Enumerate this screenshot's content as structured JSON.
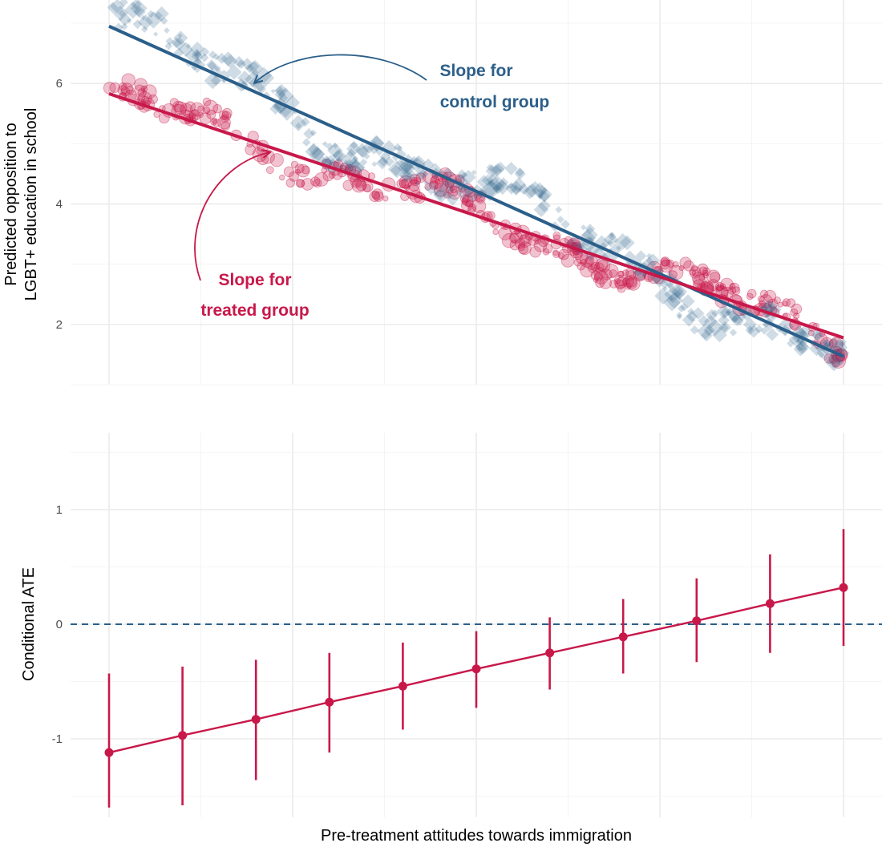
{
  "colors": {
    "control": "#2b5f8a",
    "treated": "#c8184a",
    "grid": "#ebebeb",
    "zero_line": "#2b5f8a"
  },
  "x_axis_title": "Pre-treatment attitudes towards immigration",
  "chart_data": [
    {
      "type": "scatter",
      "ylabel_lines": [
        "Predicted opposition to",
        "LGBT+ education in school"
      ],
      "xlim": [
        0,
        1
      ],
      "ylim": [
        0.95,
        7.25
      ],
      "yticks": [
        2,
        4,
        6
      ],
      "grid": true,
      "series": [
        {
          "key": "control",
          "marker": "diamond",
          "line": {
            "x": [
              0,
              1
            ],
            "y": [
              6.95,
              1.47
            ]
          }
        },
        {
          "key": "treated",
          "marker": "circle",
          "line": {
            "x": [
              0,
              1
            ],
            "y": [
              5.83,
              1.78
            ]
          }
        }
      ],
      "annotations": [
        {
          "key": "control",
          "lines": [
            "Slope for",
            "control group"
          ]
        },
        {
          "key": "treated",
          "lines": [
            "Slope for",
            "treated group"
          ]
        }
      ]
    },
    {
      "type": "line",
      "ylabel": "Conditional ATE",
      "xlim": [
        0,
        1
      ],
      "ylim": [
        -1.6,
        1.55
      ],
      "yticks": [
        -1,
        0,
        1
      ],
      "ytick_labels": [
        "-1",
        "0",
        "1"
      ],
      "reference_line": {
        "y": 0,
        "style": "dashed"
      },
      "grid": true,
      "series": [
        {
          "key": "treated",
          "x": [
            0,
            0.1,
            0.2,
            0.3,
            0.4,
            0.5,
            0.6,
            0.7,
            0.8,
            0.9,
            1.0
          ],
          "y": [
            -1.12,
            -0.97,
            -0.83,
            -0.68,
            -0.54,
            -0.39,
            -0.25,
            -0.11,
            0.03,
            0.18,
            0.32
          ],
          "lower": [
            -1.6,
            -1.58,
            -1.36,
            -1.12,
            -0.92,
            -0.73,
            -0.57,
            -0.43,
            -0.33,
            -0.25,
            -0.19
          ],
          "upper": [
            -0.43,
            -0.37,
            -0.31,
            -0.25,
            -0.16,
            -0.06,
            0.06,
            0.22,
            0.4,
            0.61,
            0.83
          ]
        }
      ]
    }
  ]
}
